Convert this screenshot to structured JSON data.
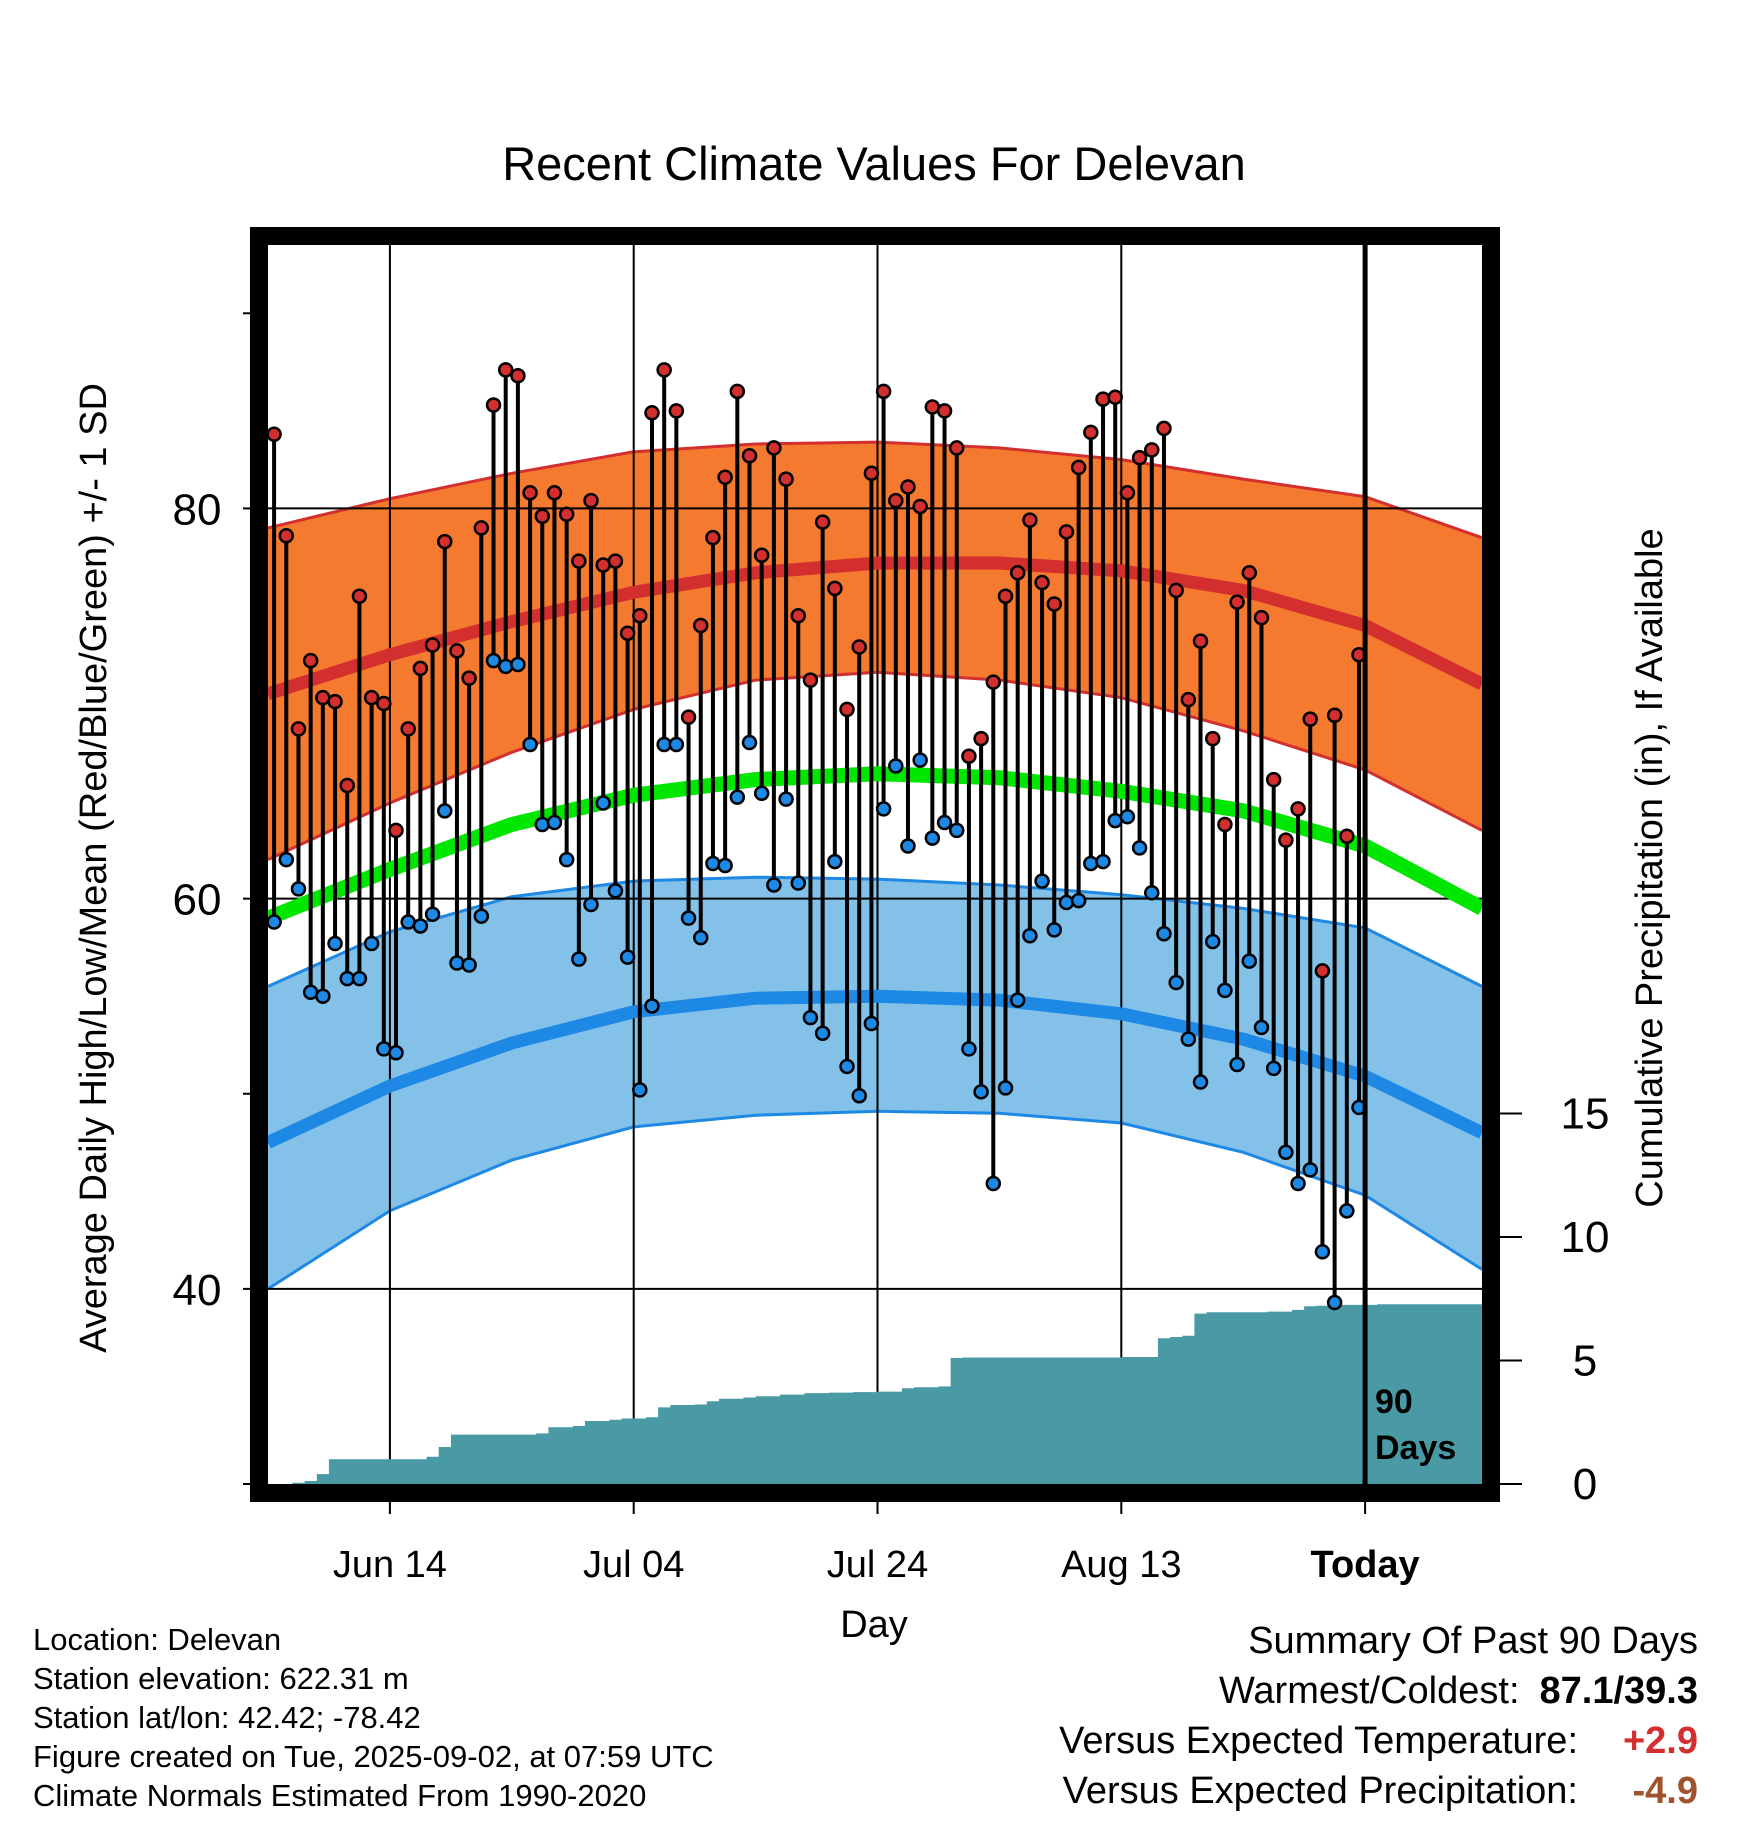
{
  "chart_data": {
    "type": "line",
    "title": "Recent Climate Values For Delevan",
    "xlabel": "Day",
    "ylabel": "Average Daily High/Low/Mean (Red/Blue/Green) +/- 1 SD",
    "y2label": "Cumulative Precipitation (in), If Available",
    "x_tick_labels": [
      "Jun 14",
      "Jul 04",
      "Jul 24",
      "Aug 13",
      "Today"
    ],
    "x_tick_day_index": [
      10,
      30,
      50,
      70,
      90
    ],
    "y_ticks": [
      40,
      60,
      80
    ],
    "y_tick_labels": [
      "40",
      "60",
      "80"
    ],
    "ylim": [
      30,
      93.5
    ],
    "y2_ticks": [
      0,
      5,
      10,
      15
    ],
    "y2_tick_labels": [
      "0",
      "5",
      "10",
      "15"
    ],
    "y2lim": [
      0,
      15
    ],
    "days_label": [
      "90",
      "Days"
    ],
    "normals": {
      "high_mean": [
        70.5,
        72.5,
        74.2,
        75.7,
        76.7,
        77.2,
        77.2,
        76.8,
        75.8,
        74.0,
        71.0
      ],
      "high_sd_upper": [
        79.0,
        80.5,
        81.8,
        82.9,
        83.3,
        83.4,
        83.1,
        82.5,
        81.5,
        80.6,
        78.5
      ],
      "high_sd_lower": [
        62.0,
        64.9,
        67.5,
        69.7,
        71.2,
        71.6,
        71.2,
        70.3,
        68.6,
        66.6,
        63.5
      ],
      "mean": [
        59.0,
        61.5,
        63.8,
        65.3,
        66.1,
        66.4,
        66.2,
        65.5,
        64.5,
        62.7,
        59.5
      ],
      "low_mean": [
        47.5,
        50.4,
        52.6,
        54.2,
        54.9,
        55.0,
        54.8,
        54.1,
        52.8,
        50.9,
        48.0
      ],
      "low_sd_upper": [
        55.5,
        58.3,
        60.1,
        60.9,
        61.1,
        61.0,
        60.7,
        60.2,
        59.5,
        58.5,
        55.5
      ],
      "low_sd_lower": [
        40.0,
        44.0,
        46.6,
        48.3,
        48.9,
        49.1,
        49.0,
        48.5,
        47.0,
        44.8,
        41.0
      ],
      "x_day_index": [
        0,
        10,
        20,
        30,
        40,
        50,
        60,
        70,
        80,
        90,
        100
      ]
    },
    "series": [
      {
        "name": "High",
        "color": "#d32f2f",
        "values": [
          83.8,
          78.6,
          68.7,
          72.2,
          70.3,
          70.1,
          65.8,
          75.5,
          70.3,
          70.0,
          63.5,
          68.7,
          71.8,
          73.0,
          78.3,
          72.7,
          71.3,
          79.0,
          85.3,
          87.1,
          86.8,
          80.8,
          79.6,
          80.8,
          79.7,
          77.3,
          80.4,
          77.1,
          77.3,
          73.6,
          74.5,
          84.9,
          87.1,
          85.0,
          69.3,
          74.0,
          78.5,
          81.6,
          86.0,
          82.7,
          77.6,
          83.1,
          81.5,
          74.5,
          71.2,
          79.3,
          75.9,
          69.7,
          72.9,
          81.8,
          86.0,
          80.4,
          81.1,
          80.1,
          85.2,
          85.0,
          83.1,
          67.3,
          68.2,
          71.1,
          75.5,
          76.7,
          79.4,
          76.2,
          75.1,
          78.8,
          82.1,
          83.9,
          85.6,
          85.7,
          80.8,
          82.6,
          83.0,
          84.1,
          75.8,
          70.2,
          73.2,
          68.2,
          63.8,
          75.2,
          76.7,
          74.4,
          66.1,
          63.0,
          64.6,
          69.2,
          56.3,
          69.4,
          63.2,
          72.5
        ]
      },
      {
        "name": "Low",
        "color": "#1e88e5",
        "values": [
          58.8,
          62.0,
          60.5,
          55.2,
          55.0,
          57.7,
          55.9,
          55.9,
          57.7,
          52.3,
          52.1,
          58.8,
          58.6,
          59.2,
          64.5,
          56.7,
          56.6,
          59.1,
          72.2,
          71.9,
          72.0,
          67.9,
          63.8,
          63.9,
          62.0,
          56.9,
          59.7,
          64.9,
          60.4,
          57.0,
          50.2,
          54.5,
          67.9,
          67.9,
          59.0,
          58.0,
          61.8,
          61.7,
          65.2,
          68.0,
          65.4,
          60.7,
          65.1,
          60.8,
          53.9,
          53.1,
          61.9,
          51.4,
          49.9,
          53.6,
          64.6,
          66.8,
          62.7,
          67.1,
          63.1,
          63.9,
          63.5,
          52.3,
          50.1,
          45.4,
          50.3,
          54.8,
          58.1,
          60.9,
          58.4,
          59.8,
          59.9,
          61.8,
          61.9,
          64.0,
          64.2,
          62.6,
          60.3,
          58.2,
          55.7,
          52.8,
          50.6,
          57.8,
          55.3,
          51.5,
          56.8,
          53.4,
          51.3,
          47.0,
          45.4,
          46.1,
          41.9,
          39.3,
          44.0,
          49.3
        ]
      },
      {
        "name": "Cumulative Precipitation",
        "color": "#4a9aa5",
        "x_day_index": [
          0,
          1,
          2,
          3,
          4,
          5,
          13,
          14,
          15,
          22,
          23,
          25,
          26,
          28,
          29,
          31,
          32,
          33,
          35,
          36,
          37,
          39,
          40,
          42,
          44,
          46,
          48,
          50,
          52,
          53,
          55,
          56,
          57,
          58,
          63,
          70,
          73,
          74,
          75,
          76,
          77,
          82,
          84,
          85,
          86,
          87,
          91,
          101
        ],
        "values": [
          0,
          0,
          0.05,
          0.12,
          0.4,
          1.0,
          1.1,
          1.5,
          2.0,
          2.05,
          2.3,
          2.35,
          2.55,
          2.6,
          2.65,
          2.7,
          3.1,
          3.2,
          3.22,
          3.35,
          3.45,
          3.5,
          3.55,
          3.62,
          3.68,
          3.7,
          3.72,
          3.74,
          3.88,
          3.92,
          3.95,
          5.1,
          5.12,
          5.12,
          5.12,
          5.14,
          5.9,
          5.95,
          6.0,
          6.9,
          6.95,
          6.98,
          7.05,
          7.2,
          7.22,
          7.25,
          7.28,
          7.3
        ]
      }
    ]
  },
  "footer": {
    "location": "Location: Delevan",
    "elevation": "Station elevation: 622.31 m",
    "latlon": "Station lat/lon: 42.42; -78.42",
    "created": "Figure created on Tue, 2025-09-02, at 07:59 UTC",
    "normals": "Climate Normals Estimated From 1990-2020"
  },
  "summary": {
    "heading": "Summary Of Past 90 Days",
    "warmest_coldest_label": "Warmest/Coldest:",
    "warmest_coldest_value": "87.1/39.3",
    "temp_label": "Versus Expected Temperature:",
    "temp_value": "+2.9",
    "temp_color": "#d32f2f",
    "precip_label": "Versus Expected Precipitation:",
    "precip_value": "-4.9",
    "precip_color": "#a0522d"
  }
}
